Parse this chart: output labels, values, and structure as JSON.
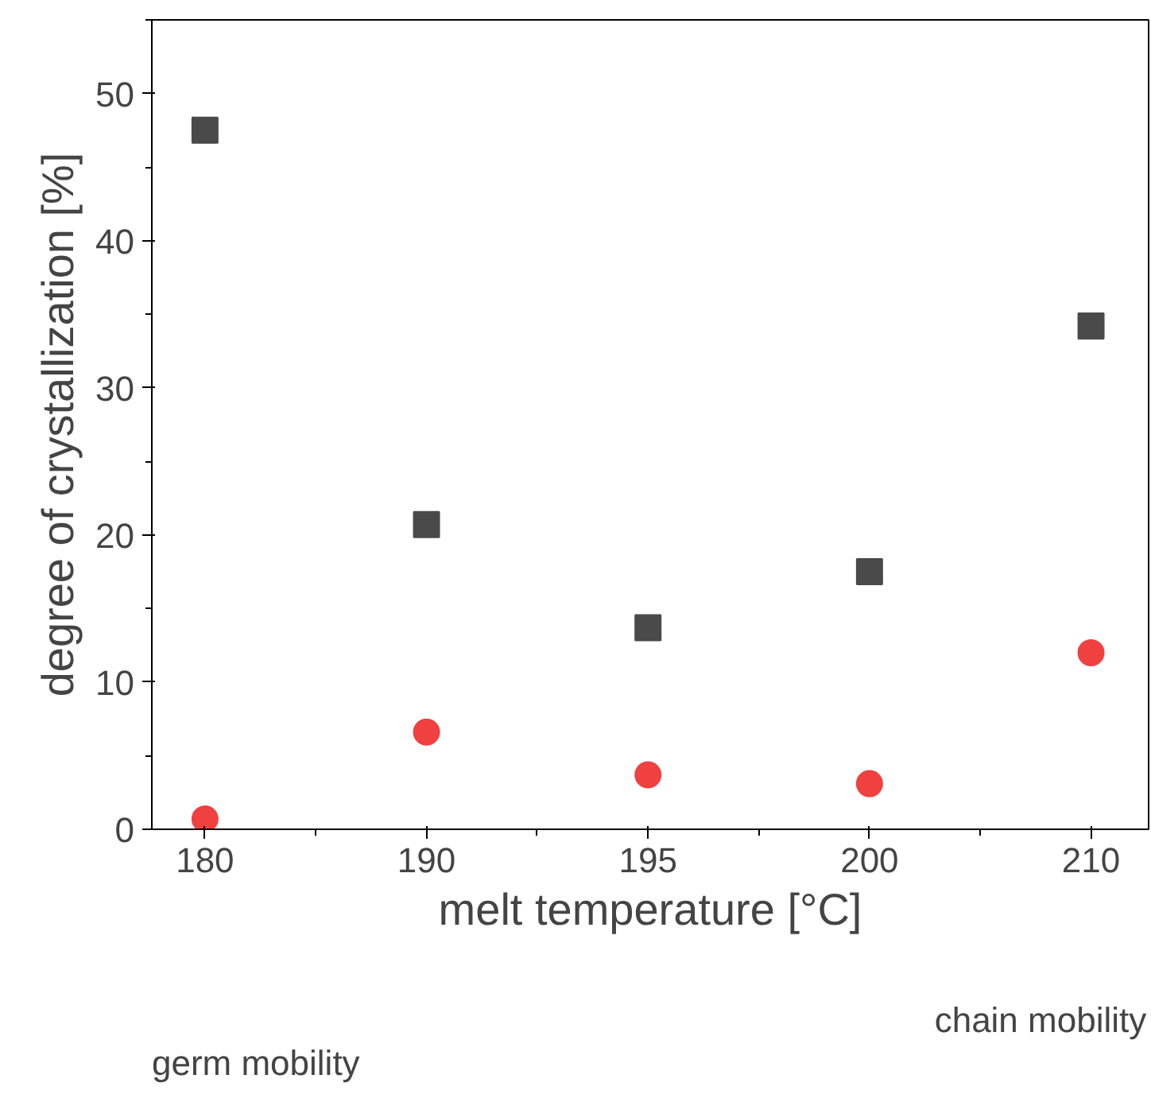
{
  "chart_data": {
    "type": "scatter",
    "xlabel": "melt temperature [°C]",
    "ylabel": "degree of crystallization [%]",
    "categories": [
      "180",
      "190",
      "195",
      "200",
      "210"
    ],
    "series": [
      {
        "color": "#4a4a4a",
        "marker": "square",
        "values": [
          47.5,
          20.7,
          13.7,
          17.5,
          34.2
        ]
      },
      {
        "color": "#f04040",
        "marker": "circle",
        "values": [
          0.7,
          6.6,
          3.7,
          3.1,
          12.0
        ]
      }
    ],
    "ylim": [
      0,
      55
    ],
    "yticks": [
      0,
      10,
      20,
      30,
      40,
      50
    ],
    "grid": false,
    "annotations": [
      "chain mobility",
      "germ mobility"
    ]
  }
}
